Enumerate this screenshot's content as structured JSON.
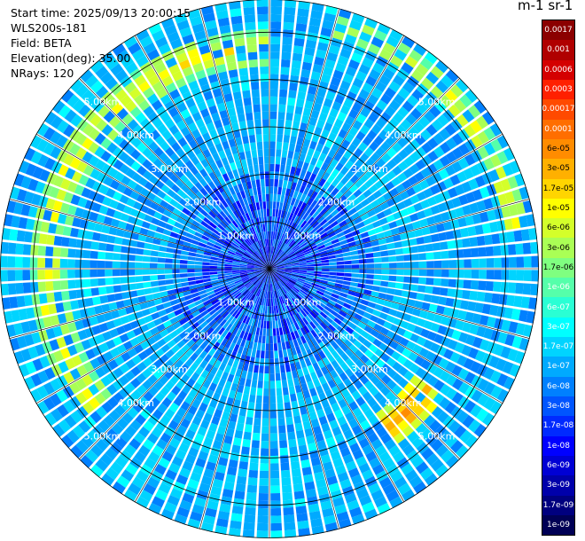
{
  "info": {
    "start_time": "Start time: 2025/09/13 20:00:15",
    "instrument": "WLS200s-181",
    "field": "Field: BETA",
    "elevation": "Elevation(deg): 35.00",
    "nrays": "NRays: 120"
  },
  "colorbar": {
    "title": "m-1 sr-1",
    "levels": [
      "0.0017",
      "0.001",
      "0.0006",
      "0.0003",
      "0.00017",
      "0.0001",
      "6e-05",
      "3e-05",
      "1.7e-05",
      "1e-05",
      "6e-06",
      "3e-06",
      "1.7e-06",
      "1e-06",
      "6e-07",
      "3e-07",
      "1.7e-07",
      "1e-07",
      "6e-08",
      "3e-08",
      "1.7e-08",
      "1e-08",
      "6e-09",
      "3e-09",
      "1.7e-09",
      "1e-09"
    ],
    "colors": [
      "#8b0000",
      "#b00000",
      "#d40000",
      "#ff2000",
      "#ff4a00",
      "#ff6e00",
      "#ff8c00",
      "#ffb000",
      "#ffd500",
      "#ffff00",
      "#d4ff2a",
      "#aaff55",
      "#7fff80",
      "#55ffaa",
      "#2affd4",
      "#00ffff",
      "#00d4ff",
      "#00aaff",
      "#0080ff",
      "#0055ff",
      "#002aff",
      "#0000ff",
      "#0000d4",
      "#0000aa",
      "#00007f",
      "#000055"
    ]
  },
  "chart_data": {
    "type": "heatmap",
    "projection": "polar (PPI scan)",
    "field": "BETA",
    "units": "m-1 sr-1",
    "elevation_deg": 35.0,
    "n_rays": 120,
    "range_rings_km": [
      "1.00km",
      "2.00km",
      "3.00km",
      "4.00km",
      "5.00km"
    ],
    "range_ring_values_km": [
      1,
      2,
      3,
      4,
      5
    ],
    "max_range_km": 5.7,
    "color_scale": "log",
    "color_range": [
      1e-09,
      0.0017
    ],
    "features": [
      {
        "description": "near-range low backscatter",
        "range_km": [
          0,
          2.2
        ],
        "typical_value": 1e-08
      },
      {
        "description": "general background",
        "range_km": [
          2.2,
          5.7
        ],
        "typical_value": 1e-07
      },
      {
        "description": "enhanced arc",
        "range_km": [
          4.3,
          5.1
        ],
        "azimuth_deg": [
          230,
          360
        ],
        "typical_value": 3e-06
      },
      {
        "description": "enhanced arc",
        "range_km": [
          5.0,
          5.5
        ],
        "azimuth_deg": [
          15,
          80
        ],
        "typical_value": 3e-06
      },
      {
        "description": "enhanced patch",
        "range_km": [
          3.8,
          4.6
        ],
        "azimuth_deg": [
          125,
          145
        ],
        "typical_value": 1e-05
      }
    ],
    "grid": true
  }
}
